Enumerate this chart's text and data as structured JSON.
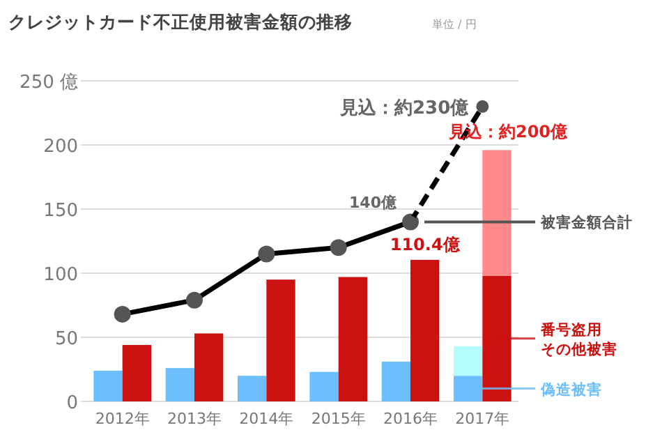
{
  "chart_data": {
    "type": "bar",
    "title": "クレジットカード不正使用被害金額の推移",
    "subtitle": "単位 / 円",
    "categories": [
      "2012年",
      "2013年",
      "2014年",
      "2015年",
      "2016年",
      "2017年"
    ],
    "ylim": [
      0,
      250
    ],
    "yticks": [
      0,
      50,
      100,
      150,
      200,
      {
        "value": 250,
        "label": "250 億"
      }
    ],
    "grid": "y",
    "legend": "right",
    "marker": "circle",
    "series": [
      {
        "name": "偽造被害",
        "color": "#6bbfff",
        "values": [
          24,
          26,
          20,
          23,
          31,
          20
        ]
      },
      {
        "color": "#b3ffff",
        "values": [
          null,
          null,
          null,
          null,
          null,
          23
        ],
        "base": [
          null,
          null,
          null,
          null,
          null,
          20
        ]
      },
      {
        "name": "番号盗用その他被害",
        "color": "#cc1111",
        "values": [
          44,
          53,
          95,
          97,
          110.4,
          98
        ],
        "value_labels": [
          null,
          null,
          null,
          null,
          "110.4億",
          null
        ]
      },
      {
        "color": "#ff8888",
        "values": [
          null,
          null,
          null,
          null,
          null,
          98
        ],
        "base": [
          null,
          null,
          null,
          null,
          null,
          98
        ],
        "value_labels": [
          null,
          null,
          null,
          null,
          null,
          "見込：約200億"
        ]
      },
      {
        "name": "被害金額合計",
        "type": "line",
        "color": "#000000",
        "line_style": "solid",
        "values": [
          68,
          79,
          115,
          120,
          140,
          null
        ],
        "value_labels": [
          null,
          null,
          null,
          null,
          "140億",
          null
        ]
      },
      {
        "type": "line",
        "color": "#000000",
        "line_style": "dashed",
        "values": [
          null,
          null,
          null,
          null,
          140,
          230
        ],
        "value_labels": [
          null,
          null,
          null,
          null,
          null,
          "見込：約230億"
        ]
      }
    ]
  }
}
